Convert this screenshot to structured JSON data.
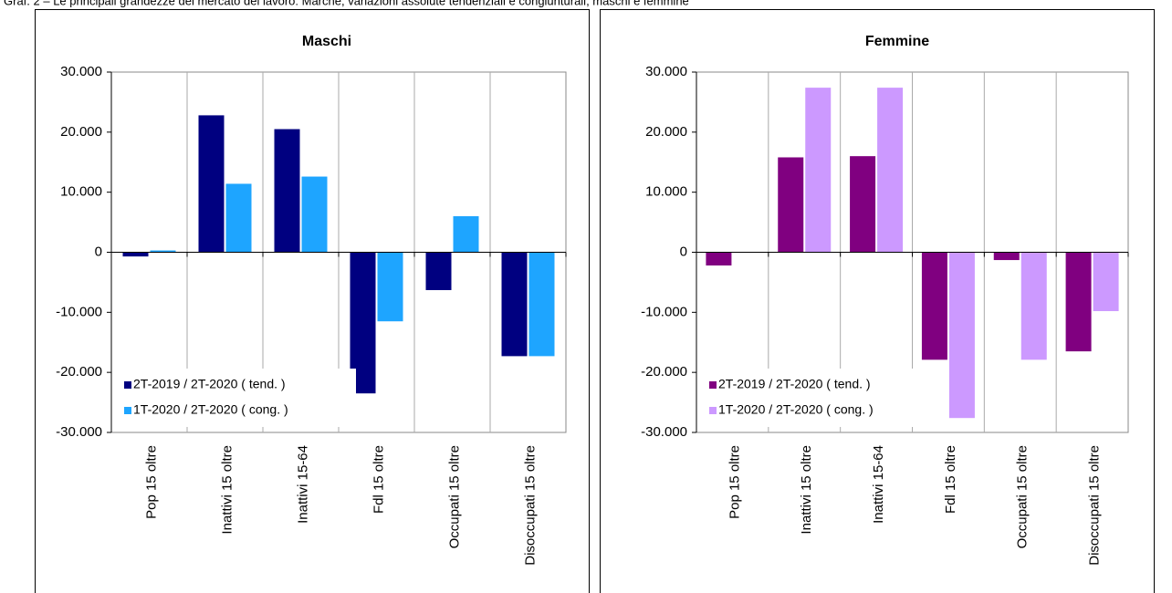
{
  "caption": "Graf. 2 – Le principali grandezze del mercato del lavoro: Marche, variazioni assolute tendenziali e congiunturali, maschi e femmine",
  "chart_data": [
    {
      "type": "bar",
      "title": "Maschi",
      "categories": [
        "Pop 15 oltre",
        "Inattivi 15 oltre",
        "Inattivi 15-64",
        "Fdl 15 oltre",
        "Occupati 15 oltre",
        "Disoccupati 15 oltre"
      ],
      "series": [
        {
          "name": "2T-2019 / 2T-2020  ( tend. )",
          "color": "#000080",
          "values": [
            -700,
            22800,
            20500,
            -23500,
            -6300,
            -17300
          ]
        },
        {
          "name": "1T-2020 / 2T-2020  ( cong. )",
          "color": "#1ea5ff",
          "values": [
            300,
            11400,
            12600,
            -11500,
            6000,
            -17300
          ]
        }
      ],
      "ylim": [
        -30000,
        30000
      ],
      "yticks": [
        {
          "value": -30000,
          "label": "-30.000"
        },
        {
          "value": -20000,
          "label": "-20.000"
        },
        {
          "value": -10000,
          "label": "-10.000"
        },
        0,
        {
          "value": 10000,
          "label": "10.000"
        },
        {
          "value": 20000,
          "label": "20.000"
        },
        {
          "value": 30000,
          "label": "30.000"
        }
      ],
      "legend": "lower left"
    },
    {
      "type": "bar",
      "title": "Femmine",
      "categories": [
        "Pop 15 oltre",
        "Inattivi 15 oltre",
        "Inattivi 15-64",
        "Fdl 15 oltre",
        "Occupati 15 oltre",
        "Disoccupati 15 oltre"
      ],
      "series": [
        {
          "name": "2T-2019 / 2T-2020  ( tend. )",
          "color": "#800080",
          "values": [
            -2200,
            15800,
            16000,
            -17900,
            -1300,
            -16500
          ]
        },
        {
          "name": "1T-2020 / 2T-2020  ( cong. )",
          "color": "#cc99ff",
          "values": [
            0,
            27400,
            27400,
            -27600,
            -17900,
            -9800
          ]
        }
      ],
      "ylim": [
        -30000,
        30000
      ],
      "yticks": [
        {
          "value": -30000,
          "label": "-30.000"
        },
        {
          "value": -20000,
          "label": "-20.000"
        },
        {
          "value": -10000,
          "label": "-10.000"
        },
        0,
        {
          "value": 10000,
          "label": "10.000"
        },
        {
          "value": 20000,
          "label": "20.000"
        },
        {
          "value": 30000,
          "label": "30.000"
        }
      ],
      "legend": "lower left"
    }
  ]
}
